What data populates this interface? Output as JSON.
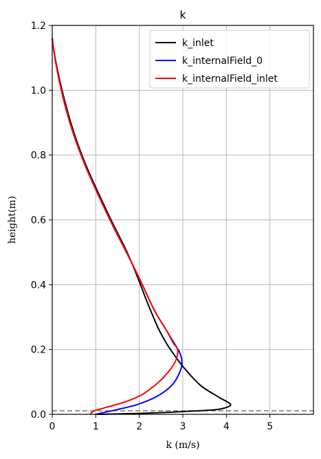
{
  "chart_data": {
    "type": "line",
    "title": "k",
    "xlabel": "k (m/s)",
    "ylabel": "height(m)",
    "xlim": [
      0,
      6
    ],
    "ylim": [
      0,
      1.2
    ],
    "xticks": [
      0,
      1,
      2,
      3,
      4,
      5
    ],
    "xtick_labels": [
      "0",
      "1",
      "2",
      "3",
      "4",
      "5"
    ],
    "yticks": [
      0,
      0.2,
      0.4,
      0.6,
      0.8,
      1.0,
      1.2
    ],
    "ytick_labels": [
      "0.0",
      "0.2",
      "0.4",
      "0.6",
      "0.8",
      "1.0",
      "1.2"
    ],
    "grid": true,
    "legend_position": "top-right",
    "reference_line": {
      "y": 0.011,
      "style": "dashed",
      "color": "#808080"
    },
    "series": [
      {
        "name": "k_inlet",
        "color": "#000000",
        "points": [
          [
            1.05,
            0.0
          ],
          [
            2.0,
            0.003
          ],
          [
            2.8,
            0.007
          ],
          [
            3.4,
            0.011
          ],
          [
            3.8,
            0.015
          ],
          [
            4.02,
            0.022
          ],
          [
            4.1,
            0.03
          ],
          [
            4.0,
            0.04
          ],
          [
            3.8,
            0.055
          ],
          [
            3.4,
            0.09
          ],
          [
            3.05,
            0.14
          ],
          [
            2.82,
            0.18
          ],
          [
            2.62,
            0.22
          ],
          [
            2.42,
            0.27
          ],
          [
            2.17,
            0.35
          ],
          [
            1.97,
            0.42
          ],
          [
            1.72,
            0.5
          ],
          [
            1.35,
            0.6
          ],
          [
            1.0,
            0.7
          ],
          [
            0.74,
            0.78
          ],
          [
            0.52,
            0.86
          ],
          [
            0.32,
            0.95
          ],
          [
            0.14,
            1.05
          ],
          [
            0.04,
            1.12
          ],
          [
            0.0,
            1.16
          ]
        ]
      },
      {
        "name": "k_internalField_0",
        "color": "#0000ff",
        "points": [
          [
            1.0,
            0.0
          ],
          [
            1.2,
            0.006
          ],
          [
            1.5,
            0.015
          ],
          [
            1.95,
            0.03
          ],
          [
            2.4,
            0.055
          ],
          [
            2.75,
            0.09
          ],
          [
            2.93,
            0.13
          ],
          [
            2.98,
            0.16
          ],
          [
            2.93,
            0.19
          ],
          [
            2.8,
            0.22
          ],
          [
            2.62,
            0.26
          ],
          [
            2.35,
            0.32
          ],
          [
            2.07,
            0.4
          ],
          [
            1.78,
            0.48
          ],
          [
            1.4,
            0.58
          ],
          [
            1.08,
            0.67
          ],
          [
            0.75,
            0.77
          ],
          [
            0.5,
            0.86
          ],
          [
            0.3,
            0.95
          ],
          [
            0.13,
            1.05
          ],
          [
            0.04,
            1.12
          ],
          [
            0.0,
            1.16
          ]
        ]
      },
      {
        "name": "k_internalField_inlet",
        "color": "#ff0000",
        "points": [
          [
            0.88,
            0.0
          ],
          [
            0.95,
            0.01
          ],
          [
            1.2,
            0.02
          ],
          [
            1.6,
            0.035
          ],
          [
            2.05,
            0.06
          ],
          [
            2.45,
            0.1
          ],
          [
            2.72,
            0.14
          ],
          [
            2.85,
            0.17
          ],
          [
            2.88,
            0.2
          ],
          [
            2.78,
            0.22
          ],
          [
            2.62,
            0.26
          ],
          [
            2.35,
            0.32
          ],
          [
            2.07,
            0.4
          ],
          [
            1.78,
            0.48
          ],
          [
            1.4,
            0.58
          ],
          [
            1.08,
            0.67
          ],
          [
            0.75,
            0.77
          ],
          [
            0.5,
            0.86
          ],
          [
            0.3,
            0.95
          ],
          [
            0.13,
            1.05
          ],
          [
            0.04,
            1.12
          ],
          [
            0.0,
            1.16
          ]
        ]
      }
    ]
  }
}
